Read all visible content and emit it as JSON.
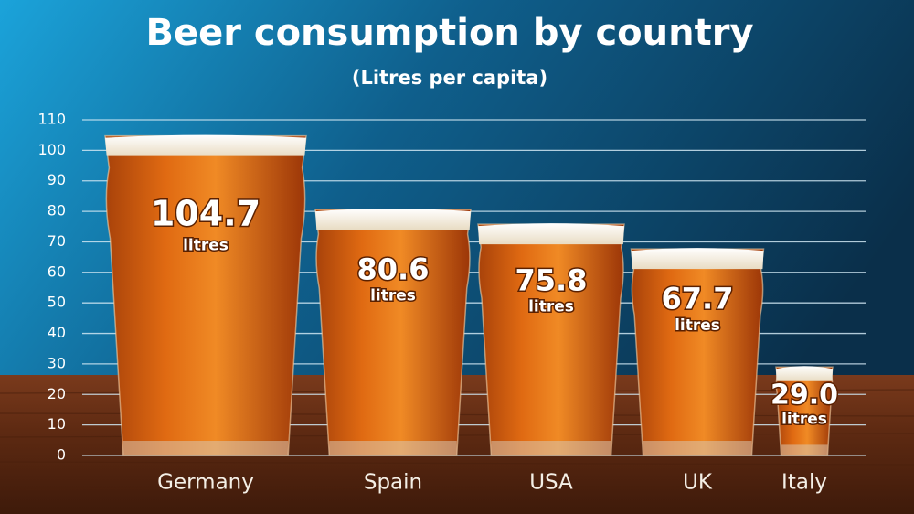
{
  "chart_data": {
    "type": "bar",
    "title": "Beer consumption by country",
    "subtitle": "(Litres per capita)",
    "categories": [
      "Germany",
      "Spain",
      "USA",
      "UK",
      "Italy"
    ],
    "values": [
      104.7,
      80.6,
      75.8,
      67.7,
      29.0
    ],
    "value_labels": [
      "104.7",
      "80.6",
      "75.8",
      "67.7",
      "29.0"
    ],
    "unit_label": "litres",
    "color": "#d9620f",
    "ylim": [
      0,
      110
    ],
    "yticks": [
      0,
      10,
      20,
      30,
      40,
      50,
      60,
      70,
      80,
      90,
      100,
      110
    ],
    "grid": true
  }
}
